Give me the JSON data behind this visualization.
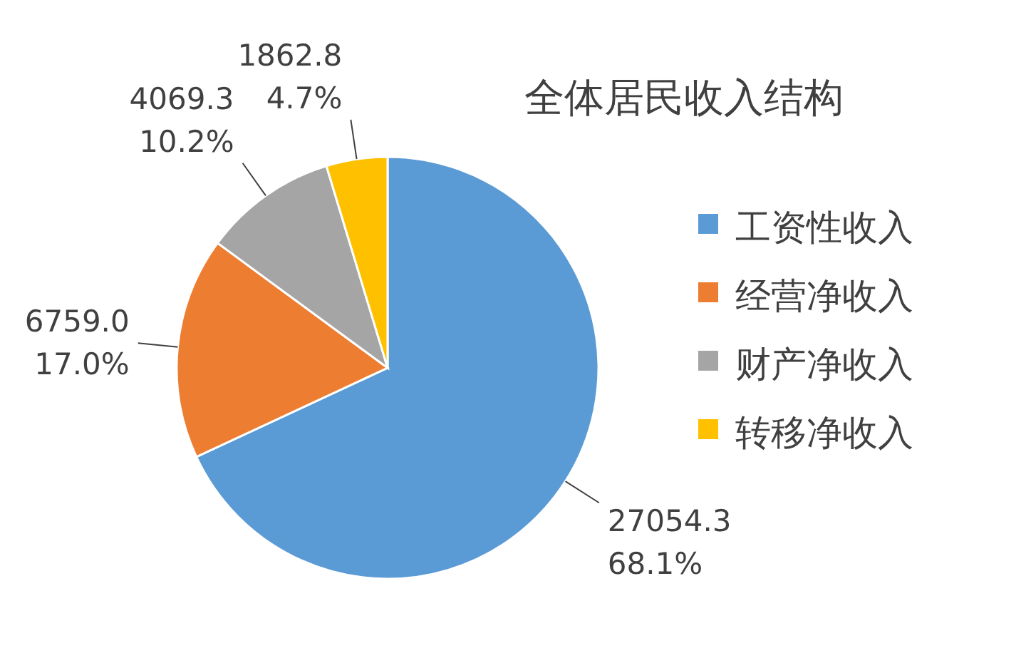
{
  "chart_data": {
    "type": "pie",
    "title": "全体居民收入结构",
    "categories": [
      "工资性收入",
      "经营净收入",
      "财产净收入",
      "转移净收入"
    ],
    "values": [
      27054.3,
      6759.0,
      4069.3,
      1862.8
    ],
    "value_labels": [
      "27054.3\n68.1%",
      "6759.0\n17.0%",
      "4069.3\n10.2%",
      "1862.8\n4.7%"
    ],
    "colors": [
      "#5b9bd5",
      "#ed7d31",
      "#a5a5a5",
      "#ffc000"
    ],
    "legend": "right"
  }
}
